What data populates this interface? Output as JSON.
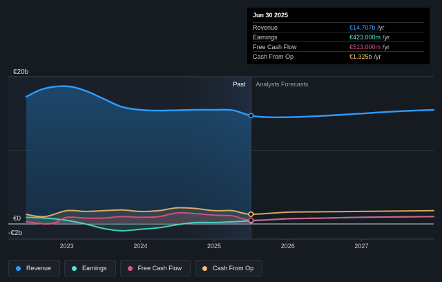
{
  "tooltip": {
    "title": "Jun 30 2025",
    "rows": [
      {
        "name": "Revenue",
        "value": "€14.707b",
        "unit": "/yr",
        "color": "#2d9cff"
      },
      {
        "name": "Earnings",
        "value": "€423.000m",
        "unit": "/yr",
        "color": "#4ee8d3"
      },
      {
        "name": "Free Cash Flow",
        "value": "€513.000m",
        "unit": "/yr",
        "color": "#e8508a"
      },
      {
        "name": "Cash From Op",
        "value": "€1.325b",
        "unit": "/yr",
        "color": "#f5c26b"
      }
    ]
  },
  "legend": [
    {
      "label": "Revenue",
      "color": "#2d9cff"
    },
    {
      "label": "Earnings",
      "color": "#4ee8d3"
    },
    {
      "label": "Free Cash Flow",
      "color": "#e8508a"
    },
    {
      "label": "Cash From Op",
      "color": "#f5c26b"
    }
  ],
  "chart_data": {
    "type": "area",
    "y_tick_labels": [
      "€20b",
      "€0",
      "-€2b"
    ],
    "x_tick_labels": [
      "2023",
      "2024",
      "2025",
      "2026",
      "2027"
    ],
    "region_labels": {
      "past": "Past",
      "forecast": "Analysts Forecasts"
    },
    "ylim": [
      -2,
      20
    ],
    "xlim": [
      2022.45,
      2027.98
    ],
    "past_end": 2025.5,
    "highlight_start": 2024.5,
    "grid": true,
    "legend_position": "bottom",
    "series": [
      {
        "name": "Revenue",
        "color": "#2d9cff",
        "x": [
          2022.45,
          2022.7,
          2023.0,
          2023.25,
          2023.5,
          2023.75,
          2024.0,
          2024.25,
          2024.5,
          2024.75,
          2025.0,
          2025.25,
          2025.5,
          2025.75,
          2026.0,
          2026.5,
          2027.0,
          2027.5,
          2027.98
        ],
        "y": [
          17.3,
          18.4,
          18.7,
          18.1,
          17.0,
          15.9,
          15.5,
          15.4,
          15.45,
          15.5,
          15.5,
          15.45,
          14.707,
          14.5,
          14.5,
          14.7,
          15.0,
          15.3,
          15.5
        ]
      },
      {
        "name": "Earnings",
        "color": "#4ee8d3",
        "x": [
          2022.45,
          2022.7,
          2023.0,
          2023.25,
          2023.5,
          2023.75,
          2024.0,
          2024.25,
          2024.5,
          2024.75,
          2025.0,
          2025.25,
          2025.5,
          2026.0,
          2026.5,
          2027.0,
          2027.98
        ],
        "y": [
          0.9,
          0.8,
          0.5,
          0.0,
          -0.6,
          -0.9,
          -0.7,
          -0.5,
          -0.1,
          0.2,
          0.2,
          0.3,
          0.423,
          0.7,
          0.8,
          0.9,
          1.0
        ]
      },
      {
        "name": "Free Cash Flow",
        "color": "#e8508a",
        "x": [
          2022.45,
          2022.7,
          2022.85,
          2023.0,
          2023.25,
          2023.5,
          2023.75,
          2024.0,
          2024.25,
          2024.5,
          2024.75,
          2025.0,
          2025.25,
          2025.5,
          2026.0,
          2026.5,
          2027.0,
          2027.98
        ],
        "y": [
          0.3,
          0.0,
          0.2,
          0.9,
          0.8,
          0.8,
          1.0,
          0.9,
          1.0,
          1.5,
          1.4,
          1.2,
          1.1,
          0.513,
          0.7,
          0.8,
          0.9,
          1.0
        ]
      },
      {
        "name": "Cash From Op",
        "color": "#f5c26b",
        "x": [
          2022.45,
          2022.7,
          2023.0,
          2023.25,
          2023.5,
          2023.75,
          2024.0,
          2024.25,
          2024.5,
          2024.75,
          2025.0,
          2025.25,
          2025.5,
          2026.0,
          2026.5,
          2027.0,
          2027.98
        ],
        "y": [
          1.3,
          1.0,
          1.8,
          1.7,
          1.8,
          1.9,
          1.7,
          1.8,
          2.2,
          2.1,
          1.8,
          1.8,
          1.325,
          1.6,
          1.65,
          1.7,
          1.8
        ]
      }
    ],
    "highlight_point": {
      "x": 2025.5
    }
  }
}
